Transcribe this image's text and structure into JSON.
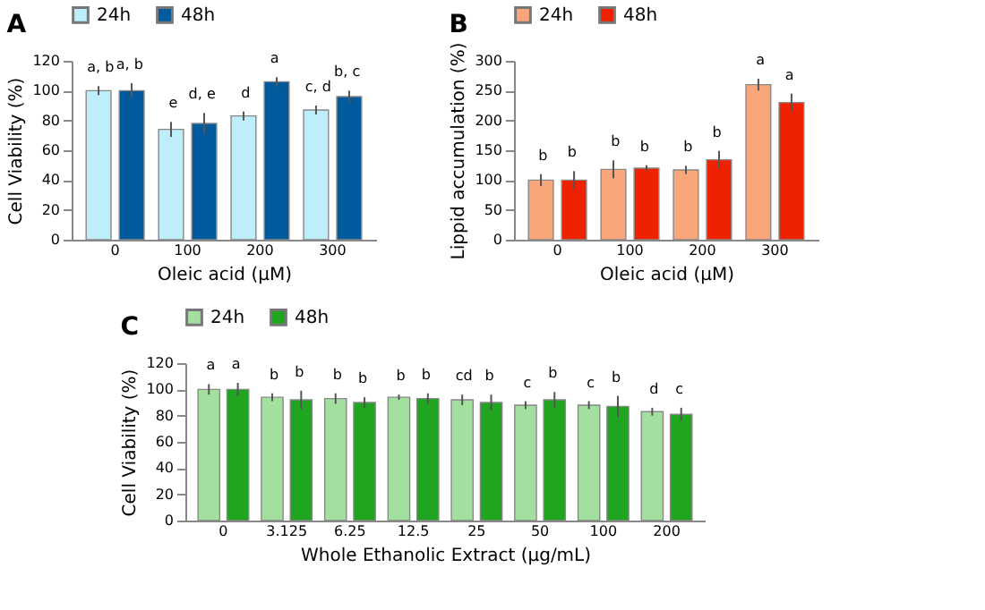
{
  "chart_data": [
    {
      "type": "bar",
      "title": "A",
      "xlabel": "Oleic acid (μM)",
      "ylabel": "Cell Viability (%)",
      "categories": [
        "0",
        "100",
        "200",
        "300"
      ],
      "ylim": [
        0,
        120
      ],
      "yticks": [
        0,
        20,
        40,
        60,
        80,
        100,
        120
      ],
      "grid": false,
      "legend": "top",
      "series": [
        {
          "name": "24h",
          "color": "#bdeefa",
          "values": [
            100,
            74,
            83,
            87
          ],
          "errors": [
            3,
            5,
            3,
            3
          ],
          "value_labels": [
            "a, b",
            "e",
            "d",
            "c, d"
          ]
        },
        {
          "name": "48h",
          "color": "#005a9c",
          "values": [
            100,
            78,
            106,
            96
          ],
          "errors": [
            5,
            7,
            3,
            4
          ],
          "value_labels": [
            "a, b",
            "d, e",
            "a",
            "b, c"
          ]
        }
      ]
    },
    {
      "type": "bar",
      "title": "B",
      "xlabel": "Oleic acid (μM)",
      "ylabel": "Lippid accumulation (%)",
      "categories": [
        "0",
        "100",
        "200",
        "300"
      ],
      "ylim": [
        0,
        300
      ],
      "yticks": [
        0,
        50,
        100,
        150,
        200,
        250,
        300
      ],
      "grid": false,
      "legend": "top",
      "series": [
        {
          "name": "24h",
          "color": "#f9a77a",
          "values": [
            100,
            118,
            117,
            260
          ],
          "errors": [
            10,
            15,
            7,
            10
          ],
          "value_labels": [
            "b",
            "b",
            "b",
            "a"
          ]
        },
        {
          "name": "48h",
          "color": "#ee2200",
          "values": [
            100,
            120,
            134,
            230
          ],
          "errors": [
            15,
            5,
            15,
            15
          ],
          "value_labels": [
            "b",
            "b",
            "b",
            "a"
          ]
        }
      ]
    },
    {
      "type": "bar",
      "title": "C",
      "xlabel": "Whole Ethanolic Extract (μg/mL)",
      "ylabel": "Cell Viability (%)",
      "categories": [
        "0",
        "3.125",
        "6.25",
        "12.5",
        "25",
        "50",
        "100",
        "200"
      ],
      "ylim": [
        0,
        120
      ],
      "yticks": [
        0,
        20,
        40,
        60,
        80,
        100,
        120
      ],
      "grid": false,
      "legend": "top",
      "series": [
        {
          "name": "24h",
          "color": "#a3e0a0",
          "values": [
            100,
            94,
            93,
            94,
            92,
            88,
            88,
            83
          ],
          "errors": [
            4,
            3,
            4,
            2,
            4,
            3,
            3,
            3
          ],
          "value_labels": [
            "a",
            "b",
            "b",
            "b",
            "cd",
            "c",
            "c",
            "d"
          ]
        },
        {
          "name": "48h",
          "color": "#1fa51f",
          "values": [
            100,
            92,
            90,
            93,
            90,
            92,
            87,
            81
          ],
          "errors": [
            5,
            7,
            4,
            4,
            6,
            6,
            8,
            5
          ],
          "value_labels": [
            "a",
            "b",
            "b",
            "b",
            "b",
            "b",
            "b",
            "c"
          ]
        }
      ]
    }
  ]
}
